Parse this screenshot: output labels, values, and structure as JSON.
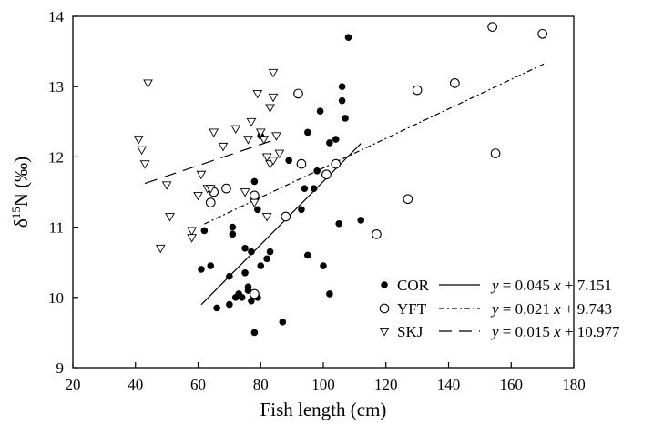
{
  "chart_data": {
    "type": "scatter",
    "xlabel": "Fish length (cm)",
    "ylabel_parts": {
      "delta": "δ",
      "sup": "15",
      "rest": "N (‰)"
    },
    "xlim": [
      20,
      180
    ],
    "ylim": [
      9,
      14
    ],
    "xticks": [
      "20",
      "40",
      "60",
      "80",
      "100",
      "120",
      "140",
      "160",
      "180"
    ],
    "yticks": [
      "9",
      "10",
      "11",
      "12",
      "13",
      "14"
    ],
    "series": [
      {
        "name": "COR",
        "marker": "filled-circle",
        "line_style": "solid",
        "equation": {
          "y": "y",
          "mid": " = 0.045 ",
          "x": "x",
          "tail": " + 7.151"
        },
        "slope": 0.045,
        "intercept": 7.151,
        "fit_range": [
          61,
          112
        ],
        "points": [
          [
            61,
            10.4
          ],
          [
            62,
            10.95
          ],
          [
            64,
            10.45
          ],
          [
            66,
            9.85
          ],
          [
            70,
            9.9
          ],
          [
            70,
            10.3
          ],
          [
            71,
            11.0
          ],
          [
            71,
            10.9
          ],
          [
            72,
            10.0
          ],
          [
            73,
            10.05
          ],
          [
            74,
            10.0
          ],
          [
            75,
            10.7
          ],
          [
            75,
            10.35
          ],
          [
            76,
            10.15
          ],
          [
            76,
            10.1
          ],
          [
            77,
            10.65
          ],
          [
            77,
            9.95
          ],
          [
            78,
            11.65
          ],
          [
            78,
            9.5
          ],
          [
            79,
            11.25
          ],
          [
            79,
            10.0
          ],
          [
            80,
            10.45
          ],
          [
            80,
            12.3
          ],
          [
            82,
            10.55
          ],
          [
            83,
            10.65
          ],
          [
            87,
            9.65
          ],
          [
            89,
            11.95
          ],
          [
            93,
            11.25
          ],
          [
            94,
            11.55
          ],
          [
            95,
            12.35
          ],
          [
            95,
            10.6
          ],
          [
            97,
            11.55
          ],
          [
            98,
            11.8
          ],
          [
            99,
            12.65
          ],
          [
            100,
            10.45
          ],
          [
            102,
            10.05
          ],
          [
            102,
            12.2
          ],
          [
            104,
            12.25
          ],
          [
            105,
            11.05
          ],
          [
            106,
            13.0
          ],
          [
            106,
            12.8
          ],
          [
            107,
            12.55
          ],
          [
            108,
            13.7
          ],
          [
            112,
            11.1
          ]
        ]
      },
      {
        "name": "YFT",
        "marker": "open-circle",
        "line_style": "dash-dot",
        "equation": {
          "y": "y",
          "mid": " = 0.021 ",
          "x": "x",
          "tail": " + 9.743"
        },
        "slope": 0.021,
        "intercept": 9.743,
        "fit_range": [
          62,
          171
        ],
        "points": [
          [
            64,
            11.35
          ],
          [
            65,
            11.5
          ],
          [
            69,
            11.55
          ],
          [
            78,
            11.45
          ],
          [
            78,
            10.05
          ],
          [
            88,
            11.15
          ],
          [
            92,
            12.9
          ],
          [
            93,
            11.9
          ],
          [
            101,
            11.75
          ],
          [
            104,
            11.9
          ],
          [
            117,
            10.9
          ],
          [
            127,
            11.4
          ],
          [
            130,
            12.95
          ],
          [
            142,
            13.05
          ],
          [
            154,
            13.85
          ],
          [
            155,
            12.05
          ],
          [
            170,
            13.75
          ]
        ]
      },
      {
        "name": "SKJ",
        "marker": "open-triangle",
        "line_style": "long-dash",
        "equation": {
          "y": "y",
          "mid": " = 0.015 ",
          "x": "x",
          "tail": " + 10.977"
        },
        "slope": 0.015,
        "intercept": 10.977,
        "fit_range": [
          43,
          85
        ],
        "points": [
          [
            41,
            12.25
          ],
          [
            42,
            12.1
          ],
          [
            43,
            11.9
          ],
          [
            44,
            13.05
          ],
          [
            48,
            10.7
          ],
          [
            50,
            11.6
          ],
          [
            51,
            11.15
          ],
          [
            58,
            10.95
          ],
          [
            58,
            10.85
          ],
          [
            60,
            11.45
          ],
          [
            61,
            11.75
          ],
          [
            63,
            11.55
          ],
          [
            64,
            11.55
          ],
          [
            65,
            12.35
          ],
          [
            68,
            12.15
          ],
          [
            72,
            12.4
          ],
          [
            75,
            11.5
          ],
          [
            76,
            12.25
          ],
          [
            77,
            12.5
          ],
          [
            78,
            11.35
          ],
          [
            79,
            12.9
          ],
          [
            80,
            12.35
          ],
          [
            81,
            12.25
          ],
          [
            82,
            12.0
          ],
          [
            83,
            11.9
          ],
          [
            83,
            12.7
          ],
          [
            84,
            13.2
          ],
          [
            84,
            12.85
          ],
          [
            84,
            11.95
          ],
          [
            85,
            12.3
          ],
          [
            86,
            12.05
          ],
          [
            82,
            11.15
          ]
        ]
      }
    ],
    "legend_position": "bottom-right",
    "grid": false
  }
}
